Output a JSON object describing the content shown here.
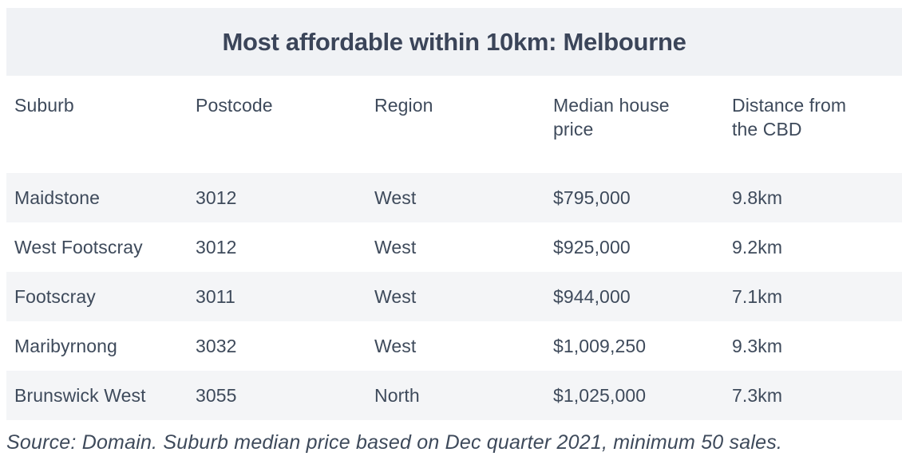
{
  "title": "Most affordable within 10km: Melbourne",
  "colors": {
    "text": "#3e4a5b",
    "title_text": "#3b4559",
    "title_band_bg": "#f0f2f5",
    "row_stripe_bg": "#f4f5f7",
    "page_bg": "#ffffff"
  },
  "chart_data": {
    "type": "table",
    "title": "Most affordable within 10km: Melbourne",
    "columns": [
      "Suburb",
      "Postcode",
      "Region",
      "Median house price",
      "Distance from the CBD"
    ],
    "rows": [
      [
        "Maidstone",
        "3012",
        "West",
        "$795,000",
        "9.8km"
      ],
      [
        "West Footscray",
        "3012",
        "West",
        "$925,000",
        "9.2km"
      ],
      [
        "Footscray",
        "3011",
        "West",
        "$944,000",
        "7.1km"
      ],
      [
        "Maribyrnong",
        "3032",
        "West",
        "$1,009,250",
        "9.3km"
      ],
      [
        "Brunswick West",
        "3055",
        "North",
        "$1,025,000",
        "7.3km"
      ]
    ],
    "source": "Source: Domain. Suburb median price based on Dec quarter 2021, minimum 50 sales.",
    "layout": {
      "zebra_striping": true,
      "header_position": "top",
      "title_alignment": "center"
    }
  }
}
